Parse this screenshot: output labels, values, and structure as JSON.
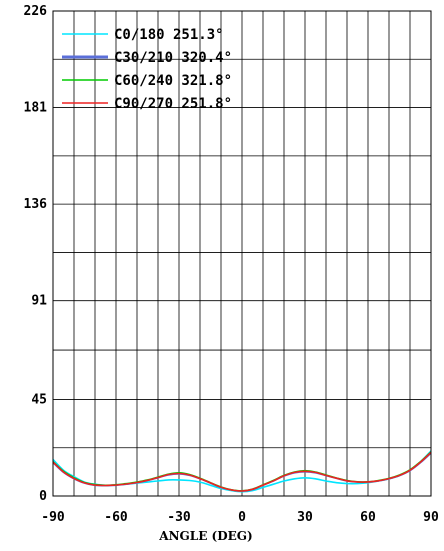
{
  "chart_data": {
    "type": "line",
    "xlabel": "ANGLE (DEG)",
    "ylabel": "",
    "xlim": [
      -90,
      90
    ],
    "ylim": [
      0,
      226
    ],
    "x_ticks": [
      -90,
      -60,
      -30,
      0,
      30,
      60,
      90
    ],
    "x_tick_labels": [
      "-90",
      "-60",
      "-30",
      "0",
      "30",
      "60",
      "90"
    ],
    "y_ticks": [
      0,
      45,
      91,
      136,
      181,
      226
    ],
    "y_tick_labels": [
      "0",
      "45",
      "91",
      "136",
      "181",
      "226"
    ],
    "grid": true,
    "legend_position": "top-left",
    "x": [
      -90,
      -85,
      -80,
      -75,
      -70,
      -65,
      -60,
      -55,
      -50,
      -45,
      -40,
      -35,
      -30,
      -25,
      -20,
      -15,
      -10,
      -5,
      0,
      5,
      10,
      15,
      20,
      25,
      30,
      35,
      40,
      45,
      50,
      55,
      60,
      65,
      70,
      75,
      80,
      85,
      90
    ],
    "series": [
      {
        "name": "C0/180 251.3°",
        "color": "#00e5ff",
        "values": [
          17,
          12,
          9,
          6.5,
          5.5,
          5,
          5.2,
          5.5,
          6,
          6.5,
          7,
          7.5,
          7.5,
          7.2,
          6.5,
          5,
          3.5,
          2.5,
          2,
          2.5,
          4,
          5.5,
          7,
          8,
          8.5,
          8,
          7,
          6.2,
          5.8,
          5.8,
          6.2,
          7,
          8,
          9.5,
          12,
          16,
          21
        ]
      },
      {
        "name": "C30/210 320.4°",
        "color": "#5b6fd9",
        "values": [
          15.5,
          11,
          8,
          6,
          5,
          4.8,
          5,
          5.5,
          6.2,
          7.2,
          8.5,
          9.8,
          10.3,
          9.6,
          8,
          6,
          4,
          2.8,
          2.3,
          3,
          5,
          7,
          9.3,
          10.8,
          11.3,
          10.8,
          9.5,
          8.2,
          7,
          6.5,
          6.5,
          7,
          8,
          9.5,
          11.8,
          15.5,
          20
        ]
      },
      {
        "name": "C60/240 321.8°",
        "color": "#00cc00",
        "values": [
          16,
          11.5,
          8.5,
          6.3,
          5.3,
          5,
          5.2,
          5.8,
          6.5,
          7.5,
          8.8,
          10.2,
          10.8,
          10,
          8.3,
          6.2,
          4.2,
          2.9,
          2.4,
          3.2,
          5.2,
          7.3,
          9.6,
          11.2,
          11.8,
          11.2,
          9.8,
          8.4,
          7.2,
          6.6,
          6.6,
          7.2,
          8.2,
          9.8,
          12.2,
          16,
          20.5
        ]
      },
      {
        "name": "C90/270 251.8°",
        "color": "#ee2222",
        "values": [
          15.8,
          11.2,
          8.2,
          6.1,
          5.1,
          4.9,
          5.1,
          5.6,
          6.3,
          7.3,
          8.6,
          10,
          10.5,
          9.8,
          8.1,
          6.1,
          4.1,
          2.85,
          2.35,
          3.1,
          5.1,
          7.1,
          9.4,
          11,
          11.5,
          11,
          9.6,
          8.3,
          7.1,
          6.55,
          6.55,
          7.1,
          8.1,
          9.6,
          12,
          15.8,
          20.3
        ]
      }
    ]
  }
}
